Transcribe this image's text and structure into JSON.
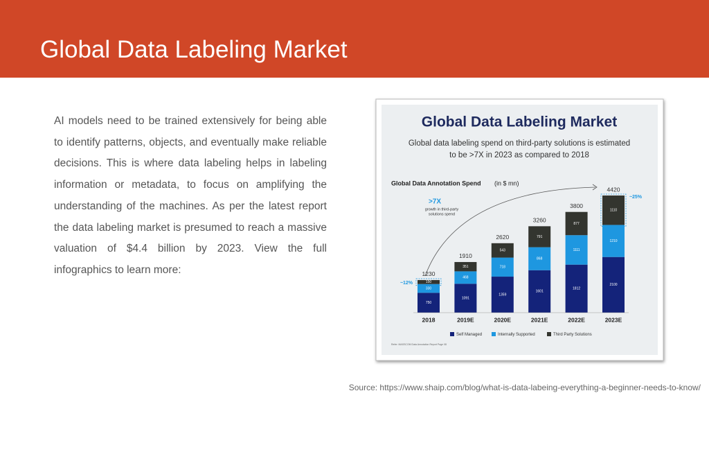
{
  "header": {
    "title": "Global Data Labeling Market"
  },
  "body": {
    "paragraph": "AI models need to be trained extensively for being able to identify patterns, objects, and eventually make reliable decisions. This is where data labeling helps in labeling information or metadata, to focus on amplifying the understanding of the machines. As per the latest report the data labeling market is presumed to reach a massive valuation of $4.4 billion by 2023. View the full infographics to learn more:"
  },
  "source": "Source: https://www.shaip.com/blog/what-is-data-labeing-everything-a-beginner-needs-to-know/",
  "chart_data": {
    "type": "stacked-bar",
    "title": "Global Data Labeling Market",
    "subtitle": [
      "Global data labeling spend on third-party solutions is estimated",
      "to be >7X in 2023 as compared to 2018"
    ],
    "axis_label": "Global Data Annotation Spend",
    "axis_unit": "(in $ mn)",
    "categories": [
      "2018",
      "2019E",
      "2020E",
      "2021E",
      "2022E",
      "2023E"
    ],
    "series": [
      {
        "name": "Self Managed",
        "color": "#14237a",
        "values": [
          750,
          1091,
          1359,
          1601,
          1812,
          2100
        ]
      },
      {
        "name": "Internally Supported",
        "color": "#1e97e0",
        "values": [
          330,
          468,
          718,
          868,
          1111,
          1210
        ]
      },
      {
        "name": "Third Party Solutions",
        "color": "#33352f",
        "values": [
          150,
          351,
          543,
          791,
          877,
          1110
        ]
      }
    ],
    "totals": [
      1230,
      1910,
      2620,
      3260,
      3800,
      4420
    ],
    "annotations": {
      "growth": ">7X",
      "growth_note": [
        "growth in third-party",
        "solutions spend"
      ],
      "share_2018": "~12%",
      "share_2023": "~25%"
    },
    "footnote": "Refer: MASSCOM Data Annotation Report Page 08"
  }
}
